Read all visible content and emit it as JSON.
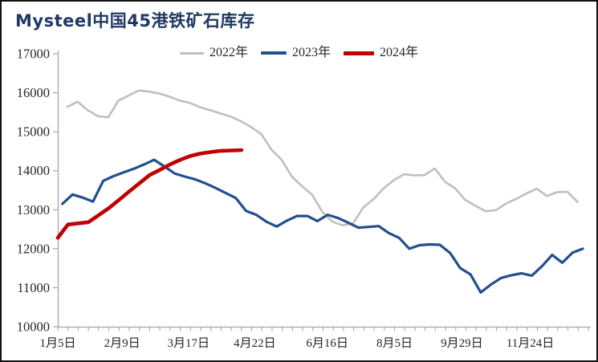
{
  "title": "Mysteel中国45港铁矿石库存",
  "title_color": "#1F3864",
  "legend": {
    "items": [
      {
        "label": "2022年",
        "color": "#BFBFBF",
        "line_width": 3,
        "sample_length": 30
      },
      {
        "label": "2023年",
        "color": "#234F8E",
        "line_width": 3.5,
        "sample_length": 32
      },
      {
        "label": "2024年",
        "color": "#C00000",
        "line_width": 5,
        "sample_length": 38
      }
    ]
  },
  "axis": {
    "color": "#A6A6A6",
    "tick_label_color": "#262626"
  },
  "chart_data": {
    "type": "line",
    "title": "Mysteel中国45港铁矿石库存",
    "xlabel": "",
    "ylabel": "",
    "ylim": [
      10000,
      17000
    ],
    "y_ticks": [
      17000,
      16000,
      15000,
      14000,
      13000,
      12000,
      11000,
      10000
    ],
    "grid": false,
    "legend_position": "top-center",
    "weeks_total": 52,
    "x_tick_labels": [
      {
        "text": "1月5日",
        "week": 0
      },
      {
        "text": "2月9日",
        "week": 6.3
      },
      {
        "text": "3月17日",
        "week": 12.8
      },
      {
        "text": "4月22日",
        "week": 19.3
      },
      {
        "text": "6月16日",
        "week": 26.4
      },
      {
        "text": "8月5日",
        "week": 33.0
      },
      {
        "text": "9月29日",
        "week": 39.6
      },
      {
        "text": "11月24日",
        "week": 46.3
      }
    ],
    "series": [
      {
        "name": "2022年",
        "color": "#BFBFBF",
        "stroke_width": 2.6,
        "start_week": 0.94,
        "values": [
          15640,
          15770,
          15550,
          15400,
          15370,
          15800,
          15930,
          16060,
          16030,
          15980,
          15900,
          15800,
          15740,
          15630,
          15550,
          15470,
          15390,
          15270,
          15120,
          14940,
          14540,
          14280,
          13850,
          13600,
          13380,
          12940,
          12690,
          12600,
          12650,
          13060,
          13270,
          13550,
          13760,
          13910,
          13880,
          13890,
          14060,
          13720,
          13550,
          13250,
          13100,
          12960,
          12990,
          13160,
          13280,
          13420,
          13540,
          13350,
          13450,
          13460,
          13200
        ]
      },
      {
        "name": "2023年",
        "color": "#234F8E",
        "stroke_width": 3.2,
        "start_week": 0.45,
        "values": [
          13150,
          13390,
          13310,
          13210,
          13740,
          13860,
          13960,
          14050,
          14160,
          14280,
          14110,
          13930,
          13850,
          13780,
          13680,
          13560,
          13430,
          13300,
          12970,
          12870,
          12690,
          12570,
          12720,
          12840,
          12840,
          12710,
          12870,
          12790,
          12670,
          12540,
          12560,
          12580,
          12400,
          12280,
          12000,
          12090,
          12110,
          12100,
          11890,
          11500,
          11340,
          10880,
          11080,
          11250,
          11320,
          11370,
          11310,
          11550,
          11840,
          11640,
          11900,
          12000
        ]
      },
      {
        "name": "2024年",
        "color": "#C00000",
        "stroke_width": 4.6,
        "start_week": 0,
        "values": [
          12280,
          12620,
          12650,
          12680,
          12860,
          13040,
          13250,
          13470,
          13680,
          13890,
          14020,
          14160,
          14280,
          14380,
          14440,
          14480,
          14510,
          14520,
          14530
        ]
      }
    ]
  }
}
